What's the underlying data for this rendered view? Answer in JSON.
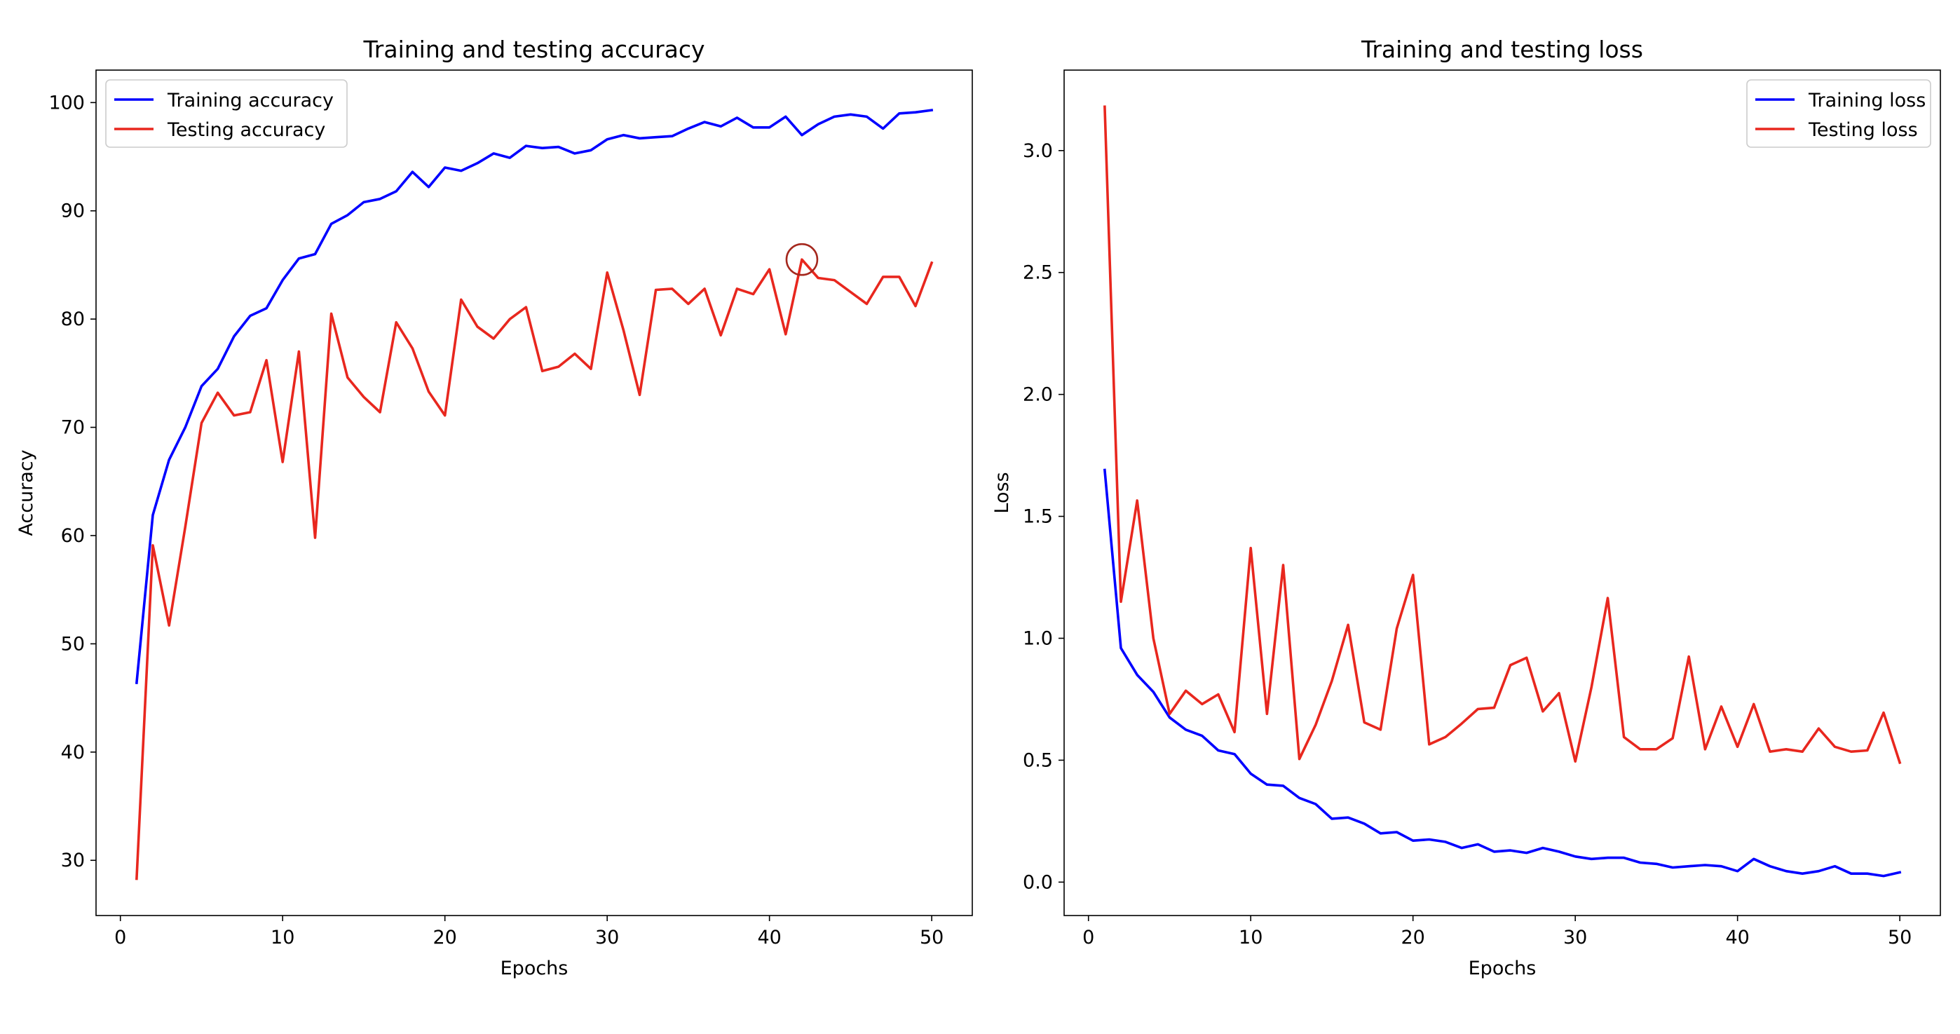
{
  "chart_data": [
    {
      "type": "line",
      "title": "Training and testing accuracy",
      "xlabel": "Epochs",
      "ylabel": "Accuracy",
      "xlim": [
        -1.5,
        52.5
      ],
      "ylim": [
        24.9,
        103.0
      ],
      "xticks": [
        0,
        10,
        20,
        30,
        40,
        50
      ],
      "yticks": [
        30,
        40,
        50,
        60,
        70,
        80,
        90,
        100
      ],
      "legend_position": "top-left",
      "grid": false,
      "annotation": {
        "shape": "circle",
        "x": 42,
        "y": 85.5,
        "color": "#a5281e"
      },
      "x": [
        1,
        2,
        3,
        4,
        5,
        6,
        7,
        8,
        9,
        10,
        11,
        12,
        13,
        14,
        15,
        16,
        17,
        18,
        19,
        20,
        21,
        22,
        23,
        24,
        25,
        26,
        27,
        28,
        29,
        30,
        31,
        32,
        33,
        34,
        35,
        36,
        37,
        38,
        39,
        40,
        41,
        42,
        43,
        44,
        45,
        46,
        47,
        48,
        49,
        50
      ],
      "series": [
        {
          "name": "Training accuracy",
          "color": "#0000ff",
          "values": [
            46.4,
            61.9,
            67.0,
            70.0,
            73.8,
            75.4,
            78.4,
            80.3,
            81.0,
            83.6,
            85.6,
            86.0,
            88.8,
            89.6,
            90.8,
            91.1,
            91.8,
            93.6,
            92.2,
            94.0,
            93.7,
            94.4,
            95.3,
            94.9,
            96.0,
            95.8,
            95.9,
            95.3,
            95.6,
            96.6,
            97.0,
            96.7,
            96.8,
            96.9,
            97.6,
            98.2,
            97.8,
            98.6,
            97.7,
            97.7,
            98.7,
            97.0,
            98.0,
            98.7,
            98.9,
            98.7,
            97.6,
            99.0,
            99.1,
            99.3
          ]
        },
        {
          "name": "Testing accuracy",
          "color": "#e8271e",
          "values": [
            28.3,
            59.1,
            51.7,
            60.8,
            70.4,
            73.2,
            71.1,
            71.4,
            76.2,
            66.8,
            77.0,
            59.8,
            80.5,
            74.6,
            72.8,
            71.4,
            79.7,
            77.3,
            73.3,
            71.1,
            81.8,
            79.3,
            78.2,
            80.0,
            81.1,
            75.2,
            75.6,
            76.8,
            75.4,
            84.3,
            79.0,
            73.0,
            82.7,
            82.8,
            81.4,
            82.8,
            78.5,
            82.8,
            82.3,
            84.6,
            78.6,
            85.5,
            83.8,
            83.6,
            82.5,
            81.4,
            83.9,
            83.9,
            81.2,
            85.2
          ]
        }
      ]
    },
    {
      "type": "line",
      "title": "Training and testing loss",
      "xlabel": "Epochs",
      "ylabel": "Loss",
      "xlim": [
        -1.5,
        52.5
      ],
      "ylim": [
        -0.137,
        3.33
      ],
      "xticks": [
        0,
        10,
        20,
        30,
        40,
        50
      ],
      "yticks": [
        0.0,
        0.5,
        1.0,
        1.5,
        2.0,
        2.5,
        3.0
      ],
      "ytick_labels": [
        "0.0",
        "0.5",
        "1.0",
        "1.5",
        "2.0",
        "2.5",
        "3.0"
      ],
      "legend_position": "top-right",
      "grid": false,
      "x": [
        1,
        2,
        3,
        4,
        5,
        6,
        7,
        8,
        9,
        10,
        11,
        12,
        13,
        14,
        15,
        16,
        17,
        18,
        19,
        20,
        21,
        22,
        23,
        24,
        25,
        26,
        27,
        28,
        29,
        30,
        31,
        32,
        33,
        34,
        35,
        36,
        37,
        38,
        39,
        40,
        41,
        42,
        43,
        44,
        45,
        46,
        47,
        48,
        49,
        50
      ],
      "series": [
        {
          "name": "Training loss",
          "color": "#0000ff",
          "values": [
            1.69,
            0.96,
            0.85,
            0.78,
            0.675,
            0.625,
            0.6,
            0.54,
            0.525,
            0.445,
            0.4,
            0.395,
            0.345,
            0.32,
            0.26,
            0.265,
            0.24,
            0.2,
            0.205,
            0.17,
            0.175,
            0.165,
            0.14,
            0.155,
            0.125,
            0.13,
            0.12,
            0.14,
            0.125,
            0.105,
            0.095,
            0.1,
            0.1,
            0.08,
            0.075,
            0.06,
            0.065,
            0.07,
            0.065,
            0.045,
            0.095,
            0.065,
            0.045,
            0.035,
            0.045,
            0.065,
            0.035,
            0.035,
            0.025,
            0.04
          ]
        },
        {
          "name": "Testing loss",
          "color": "#e8271e",
          "values": [
            3.18,
            1.15,
            1.565,
            1.0,
            0.69,
            0.785,
            0.73,
            0.77,
            0.615,
            1.37,
            0.69,
            1.3,
            0.505,
            0.645,
            0.825,
            1.055,
            0.655,
            0.625,
            1.04,
            1.26,
            0.565,
            0.595,
            0.65,
            0.71,
            0.715,
            0.89,
            0.92,
            0.7,
            0.775,
            0.495,
            0.8,
            1.165,
            0.595,
            0.545,
            0.545,
            0.59,
            0.925,
            0.545,
            0.72,
            0.555,
            0.73,
            0.535,
            0.545,
            0.535,
            0.63,
            0.555,
            0.535,
            0.54,
            0.695,
            0.49
          ]
        }
      ]
    }
  ]
}
